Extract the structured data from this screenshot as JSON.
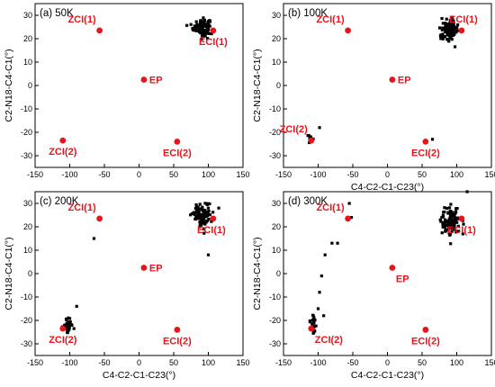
{
  "colors": {
    "ref_point": "#e8141c",
    "scatter": "#000000",
    "axis": "#000000"
  },
  "chart_data": [
    {
      "type": "scatter",
      "panel_label": "(a) 50K",
      "xlabel": "",
      "ylabel": "C2-N18-C4-C1(°)",
      "xlim": [
        -150,
        150
      ],
      "ylim": [
        -35,
        35
      ],
      "xticks": [
        -150,
        -100,
        -50,
        0,
        50,
        100,
        150
      ],
      "yticks": [
        -30,
        -20,
        -10,
        0,
        10,
        20,
        30
      ],
      "reference_points": [
        {
          "label": "ZCI(1)",
          "x": -57,
          "y": 23.5,
          "label_pos": "above-left"
        },
        {
          "label": "ECI(1)",
          "x": 107,
          "y": 23.5,
          "label_pos": "below"
        },
        {
          "label": "EP",
          "x": 7,
          "y": 2.5,
          "label_pos": "right"
        },
        {
          "label": "ZCI(2)",
          "x": -110,
          "y": -23.5,
          "label_pos": "below"
        },
        {
          "label": "ECI(2)",
          "x": 55,
          "y": -24,
          "label_pos": "below"
        }
      ],
      "clusters": [
        {
          "cx": 90,
          "cy": 25,
          "sx": 10,
          "sy": 3,
          "n": 120
        }
      ],
      "scatter_points": []
    },
    {
      "type": "scatter",
      "panel_label": "(b) 100K",
      "xlabel": "C4-C2-C1-C23(°)",
      "ylabel": "C2-N18-C4-C1(°)",
      "xlim": [
        -150,
        150
      ],
      "ylim": [
        -35,
        35
      ],
      "xticks": [
        -150,
        -100,
        -50,
        0,
        50,
        100,
        150
      ],
      "yticks": [
        -30,
        -20,
        -10,
        0,
        10,
        20,
        30
      ],
      "reference_points": [
        {
          "label": "ZCI(1)",
          "x": -57,
          "y": 23.5,
          "label_pos": "above-left"
        },
        {
          "label": "ECI(1)",
          "x": 107,
          "y": 23.5,
          "label_pos": "above"
        },
        {
          "label": "EP",
          "x": 7,
          "y": 2.5,
          "label_pos": "right"
        },
        {
          "label": "ZCI(2)",
          "x": -110,
          "y": -23.5,
          "label_pos": "above-left"
        },
        {
          "label": "ECI(2)",
          "x": 55,
          "y": -24,
          "label_pos": "below"
        }
      ],
      "clusters": [
        {
          "cx": 90,
          "cy": 24,
          "sx": 10,
          "sy": 3.5,
          "n": 120
        },
        {
          "cx": -110,
          "cy": -23,
          "sx": 3,
          "sy": 1.5,
          "n": 8
        }
      ],
      "scatter_points": [
        {
          "x": -98,
          "y": -18
        },
        {
          "x": 65,
          "y": -23
        }
      ]
    },
    {
      "type": "scatter",
      "panel_label": "(c) 200K",
      "xlabel": "C4-C2-C1-C23(°)",
      "ylabel": "C2-N18-C4-C1(°)",
      "xlim": [
        -150,
        150
      ],
      "ylim": [
        -35,
        35
      ],
      "xticks": [
        -150,
        -100,
        -50,
        0,
        50,
        100,
        150
      ],
      "yticks": [
        -30,
        -20,
        -10,
        0,
        10,
        20,
        30
      ],
      "reference_points": [
        {
          "label": "ZCI(1)",
          "x": -57,
          "y": 23.5,
          "label_pos": "above-left"
        },
        {
          "label": "ECI(1)",
          "x": 107,
          "y": 23.5,
          "label_pos": "below-left"
        },
        {
          "label": "EP",
          "x": 7,
          "y": 2.5,
          "label_pos": "right"
        },
        {
          "label": "ZCI(2)",
          "x": -110,
          "y": -23.5,
          "label_pos": "below"
        },
        {
          "label": "ECI(2)",
          "x": 55,
          "y": -24,
          "label_pos": "below"
        }
      ],
      "clusters": [
        {
          "cx": 92,
          "cy": 25,
          "sx": 11,
          "sy": 4,
          "n": 110
        },
        {
          "cx": -103,
          "cy": -22,
          "sx": 6,
          "sy": 2.5,
          "n": 30
        }
      ],
      "scatter_points": [
        {
          "x": -65,
          "y": 15
        },
        {
          "x": 100,
          "y": 8
        },
        {
          "x": 115,
          "y": 28
        },
        {
          "x": -90,
          "y": -14
        }
      ]
    },
    {
      "type": "scatter",
      "panel_label": "(d) 300K",
      "xlabel": "C4-C2-C1-C23(°)",
      "ylabel": "C2-N18-C4-C1(°)",
      "xlim": [
        -150,
        150
      ],
      "ylim": [
        -35,
        35
      ],
      "xticks": [
        -150,
        -100,
        -50,
        0,
        50,
        100,
        150
      ],
      "yticks": [
        -30,
        -20,
        -10,
        0,
        10,
        20,
        30
      ],
      "reference_points": [
        {
          "label": "ZCI(1)",
          "x": -57,
          "y": 23.5,
          "label_pos": "above-left"
        },
        {
          "label": "ECI(1)",
          "x": 107,
          "y": 23.5,
          "label_pos": "below"
        },
        {
          "label": "EP",
          "x": 7,
          "y": 2.5,
          "label_pos": "below-right"
        },
        {
          "label": "ZCI(2)",
          "x": -110,
          "y": -23.5,
          "label_pos": "below-right"
        },
        {
          "label": "ECI(2)",
          "x": 55,
          "y": -24,
          "label_pos": "below"
        }
      ],
      "clusters": [
        {
          "cx": 92,
          "cy": 22,
          "sx": 12,
          "sy": 6,
          "n": 90
        },
        {
          "cx": -108,
          "cy": -22,
          "sx": 5,
          "sy": 4,
          "n": 25
        }
      ],
      "scatter_points": [
        {
          "x": -55,
          "y": 30
        },
        {
          "x": -52,
          "y": 24
        },
        {
          "x": -80,
          "y": 13
        },
        {
          "x": -72,
          "y": 13
        },
        {
          "x": -90,
          "y": 8
        },
        {
          "x": -95,
          "y": -1
        },
        {
          "x": -98,
          "y": -8
        },
        {
          "x": -100,
          "y": -15
        },
        {
          "x": -92,
          "y": -18
        },
        {
          "x": 115,
          "y": 35
        }
      ]
    }
  ]
}
